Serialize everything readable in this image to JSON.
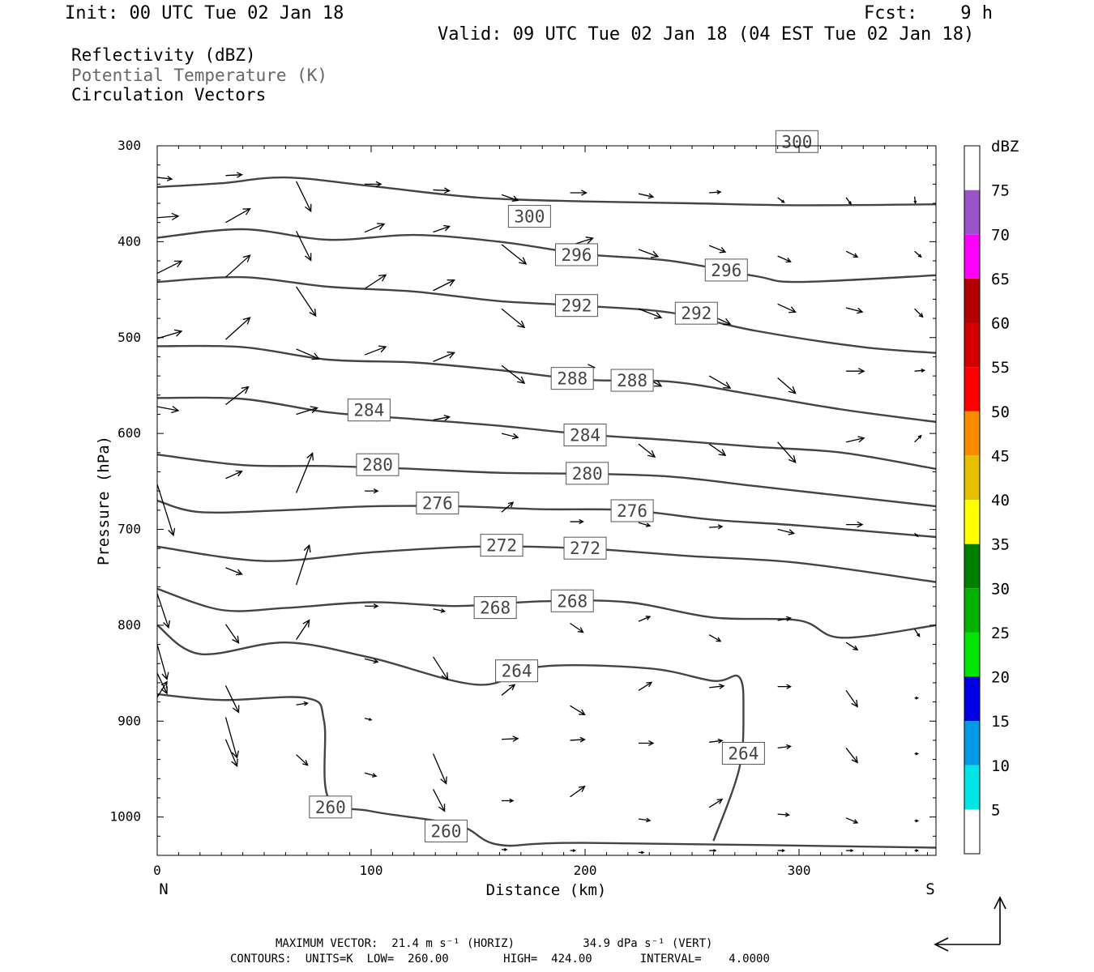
{
  "header": {
    "init": "Init: 00 UTC Tue 02 Jan 18",
    "fcst": "Fcst:    9 h",
    "valid": "Valid: 09 UTC Tue 02 Jan 18 (04 EST Tue 02 Jan 18)",
    "legend_lines": [
      "Reflectivity (dBZ)",
      "Potential Temperature (K)",
      "Circulation Vectors"
    ]
  },
  "footer": {
    "line1": "MAXIMUM VECTOR:  21.4 m s⁻¹ (HORIZ)          34.9 dPa s⁻¹ (VERT)",
    "line2": "CONTOURS:  UNITS=K  LOW=  260.00        HIGH=  424.00       INTERVAL=    4.0000"
  },
  "colors": {
    "contour": "#444444",
    "arrow": "#000000",
    "frame": "#000000"
  },
  "chart_data": {
    "type": "cross-section",
    "xlabel": "Distance (km)",
    "ylabel": "Pressure (hPa)",
    "xlim": [
      0,
      364
    ],
    "ylim": [
      300,
      1040
    ],
    "x_ticks": [
      0,
      100,
      200,
      300
    ],
    "y_ticks": [
      300,
      400,
      500,
      600,
      700,
      800,
      900,
      1000
    ],
    "x_end_labels": [
      "N",
      "S"
    ],
    "colorbar": {
      "title": "dBZ",
      "levels": [
        5,
        10,
        15,
        20,
        25,
        30,
        35,
        40,
        45,
        50,
        55,
        60,
        65,
        70,
        75
      ],
      "colors": [
        "#ffffff",
        "#00e5e5",
        "#0099e5",
        "#0000e5",
        "#00e500",
        "#00b300",
        "#008000",
        "#ffff00",
        "#e5c000",
        "#ff8c00",
        "#ff0000",
        "#d40000",
        "#b30000",
        "#ff00ff",
        "#9955cc",
        "#ffffff"
      ]
    },
    "isentropes": [
      {
        "theta": 300,
        "labels": [
          {
            "x": 174,
            "p": 374
          },
          {
            "x": 299,
            "p": 296
          }
        ],
        "points": [
          [
            0,
            343
          ],
          [
            30,
            339
          ],
          [
            60,
            333
          ],
          [
            100,
            342
          ],
          [
            150,
            354
          ],
          [
            200,
            358
          ],
          [
            250,
            360
          ],
          [
            300,
            362
          ],
          [
            364,
            361
          ]
        ]
      },
      {
        "theta": 296,
        "labels": [
          {
            "x": 196,
            "p": 414
          },
          {
            "x": 266,
            "p": 430
          }
        ],
        "points": [
          [
            0,
            396
          ],
          [
            40,
            387
          ],
          [
            80,
            398
          ],
          [
            120,
            393
          ],
          [
            160,
            400
          ],
          [
            200,
            413
          ],
          [
            240,
            420
          ],
          [
            280,
            436
          ],
          [
            300,
            442
          ],
          [
            364,
            435
          ]
        ]
      },
      {
        "theta": 292,
        "labels": [
          {
            "x": 196,
            "p": 467
          },
          {
            "x": 252,
            "p": 475
          }
        ],
        "points": [
          [
            0,
            442
          ],
          [
            40,
            437
          ],
          [
            80,
            447
          ],
          [
            120,
            452
          ],
          [
            160,
            462
          ],
          [
            200,
            467
          ],
          [
            240,
            474
          ],
          [
            280,
            493
          ],
          [
            330,
            510
          ],
          [
            364,
            516
          ]
        ]
      },
      {
        "theta": 288,
        "labels": [
          {
            "x": 194,
            "p": 543
          },
          {
            "x": 222,
            "p": 545
          }
        ],
        "points": [
          [
            0,
            509
          ],
          [
            40,
            510
          ],
          [
            80,
            523
          ],
          [
            120,
            526
          ],
          [
            160,
            534
          ],
          [
            200,
            544
          ],
          [
            240,
            546
          ],
          [
            280,
            560
          ],
          [
            320,
            575
          ],
          [
            364,
            588
          ]
        ]
      },
      {
        "theta": 284,
        "labels": [
          {
            "x": 99,
            "p": 576
          },
          {
            "x": 200,
            "p": 602
          }
        ],
        "points": [
          [
            0,
            563
          ],
          [
            40,
            564
          ],
          [
            80,
            578
          ],
          [
            120,
            585
          ],
          [
            160,
            592
          ],
          [
            200,
            601
          ],
          [
            240,
            607
          ],
          [
            280,
            614
          ],
          [
            320,
            620
          ],
          [
            364,
            637
          ]
        ]
      },
      {
        "theta": 280,
        "labels": [
          {
            "x": 103,
            "p": 633
          },
          {
            "x": 201,
            "p": 642
          }
        ],
        "points": [
          [
            0,
            622
          ],
          [
            40,
            633
          ],
          [
            80,
            634
          ],
          [
            120,
            637
          ],
          [
            160,
            641
          ],
          [
            200,
            642
          ],
          [
            240,
            645
          ],
          [
            280,
            655
          ],
          [
            320,
            665
          ],
          [
            364,
            676
          ]
        ]
      },
      {
        "theta": 276,
        "labels": [
          {
            "x": 131,
            "p": 673
          },
          {
            "x": 222,
            "p": 681
          }
        ],
        "points": [
          [
            0,
            670
          ],
          [
            20,
            682
          ],
          [
            60,
            680
          ],
          [
            100,
            676
          ],
          [
            140,
            676
          ],
          [
            180,
            679
          ],
          [
            220,
            680
          ],
          [
            260,
            690
          ],
          [
            300,
            696
          ],
          [
            364,
            708
          ]
        ]
      },
      {
        "theta": 272,
        "labels": [
          {
            "x": 161,
            "p": 717
          },
          {
            "x": 200,
            "p": 720
          }
        ],
        "points": [
          [
            0,
            718
          ],
          [
            50,
            733
          ],
          [
            100,
            724
          ],
          [
            150,
            718
          ],
          [
            200,
            720
          ],
          [
            250,
            728
          ],
          [
            300,
            735
          ],
          [
            364,
            755
          ]
        ]
      },
      {
        "theta": 268,
        "labels": [
          {
            "x": 158,
            "p": 782
          },
          {
            "x": 194,
            "p": 775
          }
        ],
        "points": [
          [
            0,
            762
          ],
          [
            30,
            784
          ],
          [
            60,
            782
          ],
          [
            100,
            776
          ],
          [
            140,
            780
          ],
          [
            180,
            775
          ],
          [
            220,
            776
          ],
          [
            260,
            792
          ],
          [
            300,
            795
          ],
          [
            320,
            813
          ],
          [
            364,
            800
          ]
        ]
      },
      {
        "theta": 264,
        "labels": [
          {
            "x": 168,
            "p": 848
          },
          {
            "x": 274,
            "p": 934
          }
        ],
        "points": [
          [
            0,
            800
          ],
          [
            20,
            830
          ],
          [
            60,
            818
          ],
          [
            100,
            834
          ],
          [
            150,
            862
          ],
          [
            180,
            843
          ],
          [
            230,
            845
          ],
          [
            260,
            858
          ],
          [
            272,
            854
          ],
          [
            274,
            890
          ],
          [
            272,
            950
          ],
          [
            260,
            1025
          ]
        ]
      },
      {
        "theta": 260,
        "labels": [
          {
            "x": 81,
            "p": 990
          },
          {
            "x": 135,
            "p": 1015
          }
        ],
        "points": [
          [
            0,
            872
          ],
          [
            30,
            878
          ],
          [
            70,
            876
          ],
          [
            78,
            900
          ],
          [
            80,
            980
          ],
          [
            100,
            994
          ],
          [
            140,
            1008
          ],
          [
            160,
            1029
          ],
          [
            200,
            1027
          ],
          [
            364,
            1032
          ]
        ]
      }
    ],
    "vectors": [
      [
        0,
        333,
        18,
        2
      ],
      [
        32,
        331,
        20,
        -1
      ],
      [
        65,
        337,
        18,
        37
      ],
      [
        97,
        340,
        20,
        0
      ],
      [
        129,
        346,
        20,
        1
      ],
      [
        161,
        351,
        20,
        7
      ],
      [
        193,
        349,
        20,
        0
      ],
      [
        225,
        350,
        18,
        4
      ],
      [
        258,
        349,
        14,
        -1
      ],
      [
        290,
        354,
        8,
        6
      ],
      [
        322,
        354,
        6,
        8
      ],
      [
        354,
        353,
        1,
        8
      ],
      [
        0,
        375,
        26,
        -2
      ],
      [
        32,
        380,
        30,
        -17
      ],
      [
        65,
        389,
        18,
        36
      ],
      [
        97,
        390,
        24,
        -10
      ],
      [
        129,
        390,
        20,
        -7
      ],
      [
        161,
        403,
        30,
        24
      ],
      [
        193,
        404,
        28,
        -9
      ],
      [
        225,
        408,
        24,
        9
      ],
      [
        258,
        404,
        20,
        8
      ],
      [
        290,
        415,
        16,
        7
      ],
      [
        322,
        410,
        14,
        7
      ],
      [
        354,
        410,
        8,
        7
      ],
      [
        0,
        433,
        30,
        -15
      ],
      [
        32,
        437,
        30,
        -27
      ],
      [
        65,
        447,
        24,
        36
      ],
      [
        97,
        449,
        26,
        -17
      ],
      [
        129,
        451,
        26,
        -13
      ],
      [
        161,
        470,
        28,
        23
      ],
      [
        193,
        465,
        20,
        0
      ],
      [
        225,
        470,
        28,
        11
      ],
      [
        258,
        476,
        26,
        12
      ],
      [
        290,
        465,
        22,
        10
      ],
      [
        322,
        469,
        20,
        5
      ],
      [
        354,
        470,
        10,
        10
      ],
      [
        0,
        501,
        30,
        -9
      ],
      [
        32,
        502,
        30,
        -27
      ],
      [
        65,
        512,
        28,
        12
      ],
      [
        97,
        518,
        26,
        -10
      ],
      [
        129,
        525,
        26,
        -11
      ],
      [
        161,
        529,
        28,
        22
      ],
      [
        193,
        532,
        30,
        -1
      ],
      [
        225,
        538,
        28,
        15
      ],
      [
        258,
        540,
        26,
        15
      ],
      [
        290,
        542,
        22,
        19
      ],
      [
        322,
        535,
        22,
        0
      ],
      [
        354,
        535,
        12,
        -1
      ],
      [
        0,
        572,
        26,
        5
      ],
      [
        32,
        570,
        28,
        -22
      ],
      [
        65,
        580,
        26,
        -8
      ],
      [
        97,
        585,
        20,
        -1
      ],
      [
        129,
        586,
        20,
        -4
      ],
      [
        161,
        600,
        20,
        5
      ],
      [
        193,
        604,
        20,
        4
      ],
      [
        225,
        611,
        20,
        16
      ],
      [
        258,
        611,
        20,
        14
      ],
      [
        290,
        609,
        22,
        25
      ],
      [
        322,
        609,
        22,
        -5
      ],
      [
        354,
        609,
        8,
        -8
      ],
      [
        32,
        647,
        20,
        -9
      ],
      [
        65,
        662,
        20,
        -49
      ],
      [
        97,
        660,
        16,
        0
      ],
      [
        129,
        673,
        14,
        0
      ],
      [
        161,
        682,
        14,
        -12
      ],
      [
        193,
        692,
        16,
        0
      ],
      [
        225,
        693,
        14,
        4
      ],
      [
        258,
        698,
        16,
        -1
      ],
      [
        290,
        700,
        20,
        5
      ],
      [
        322,
        695,
        20,
        0
      ],
      [
        354,
        704,
        4,
        4
      ],
      [
        0,
        653,
        20,
        63
      ],
      [
        32,
        740,
        20,
        8
      ],
      [
        65,
        758,
        16,
        -49
      ],
      [
        97,
        780,
        16,
        0
      ],
      [
        129,
        783,
        14,
        3
      ],
      [
        161,
        790,
        14,
        -7
      ],
      [
        193,
        798,
        16,
        11
      ],
      [
        225,
        796,
        14,
        -6
      ],
      [
        258,
        810,
        14,
        8
      ],
      [
        290,
        795,
        16,
        -3
      ],
      [
        322,
        818,
        14,
        9
      ],
      [
        354,
        804,
        6,
        9
      ],
      [
        0,
        767,
        14,
        42
      ],
      [
        32,
        799,
        16,
        23
      ],
      [
        65,
        815,
        16,
        -24
      ],
      [
        97,
        835,
        16,
        4
      ],
      [
        129,
        833,
        18,
        28
      ],
      [
        161,
        873,
        16,
        -13
      ],
      [
        193,
        884,
        18,
        11
      ],
      [
        225,
        868,
        16,
        -10
      ],
      [
        258,
        865,
        18,
        -2
      ],
      [
        290,
        864,
        16,
        0
      ],
      [
        322,
        868,
        14,
        20
      ],
      [
        354,
        876,
        4,
        0
      ],
      [
        0,
        820,
        12,
        43
      ],
      [
        32,
        863,
        16,
        33
      ],
      [
        65,
        883,
        14,
        -2
      ],
      [
        97,
        897,
        8,
        2
      ],
      [
        129,
        934,
        16,
        37
      ],
      [
        161,
        919,
        20,
        -1
      ],
      [
        193,
        920,
        18,
        -1
      ],
      [
        225,
        923,
        18,
        0
      ],
      [
        258,
        922,
        16,
        -2
      ],
      [
        290,
        928,
        16,
        -2
      ],
      [
        322,
        928,
        14,
        18
      ],
      [
        354,
        934,
        4,
        0
      ],
      [
        0,
        875,
        12,
        -19
      ],
      [
        32,
        919,
        14,
        33
      ],
      [
        65,
        935,
        14,
        13
      ],
      [
        97,
        954,
        14,
        4
      ],
      [
        129,
        971,
        14,
        27
      ],
      [
        161,
        983,
        14,
        0
      ],
      [
        193,
        979,
        18,
        -13
      ],
      [
        225,
        1002,
        14,
        2
      ],
      [
        258,
        990,
        16,
        -10
      ],
      [
        290,
        997,
        14,
        1
      ],
      [
        322,
        1001,
        14,
        6
      ],
      [
        354,
        1004,
        4,
        0
      ],
      [
        0,
        850,
        12,
        25
      ],
      [
        32,
        896,
        14,
        50
      ],
      [
        161,
        1034,
        6,
        0
      ],
      [
        193,
        1035,
        6,
        0
      ],
      [
        225,
        1037,
        6,
        0
      ],
      [
        258,
        1035,
        8,
        0
      ],
      [
        290,
        1035,
        8,
        0
      ],
      [
        322,
        1035,
        8,
        0
      ],
      [
        354,
        1035,
        4,
        0
      ]
    ]
  }
}
